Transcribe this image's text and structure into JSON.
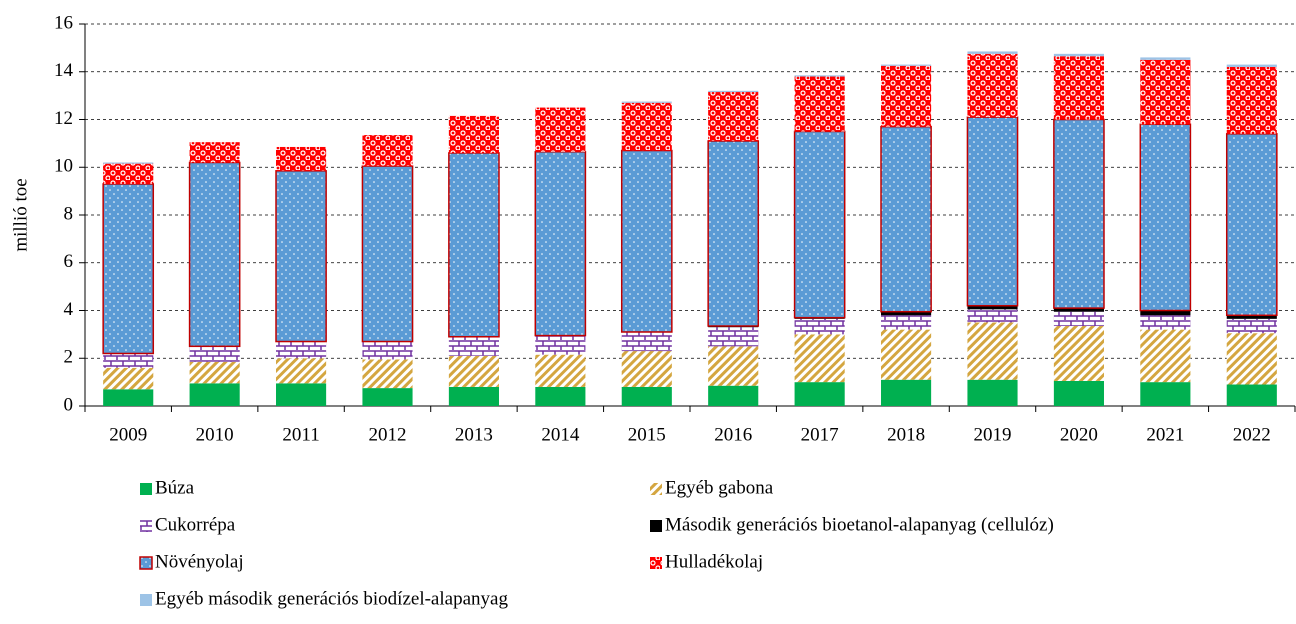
{
  "chart_data": {
    "type": "stacked_bar",
    "y_label": "millió toe",
    "categories": [
      "2009",
      "2010",
      "2011",
      "2012",
      "2013",
      "2014",
      "2015",
      "2016",
      "2017",
      "2018",
      "2019",
      "2020",
      "2021",
      "2022"
    ],
    "series": [
      {
        "name": "Búza",
        "color": "#00b050",
        "values": [
          0.7,
          0.95,
          0.95,
          0.75,
          0.8,
          0.8,
          0.8,
          0.85,
          1.0,
          1.1,
          1.1,
          1.05,
          1.0,
          0.9
        ]
      },
      {
        "name": "Egyéb gabona",
        "color": "#d4a640",
        "values": [
          0.9,
          0.9,
          1.05,
          1.2,
          1.3,
          1.35,
          1.5,
          1.65,
          2.0,
          2.1,
          2.4,
          2.3,
          2.2,
          2.15
        ]
      },
      {
        "name": "Cukorrépa",
        "color": "#7030a0",
        "values": [
          0.6,
          0.65,
          0.7,
          0.75,
          0.8,
          0.8,
          0.8,
          0.8,
          0.65,
          0.6,
          0.55,
          0.6,
          0.6,
          0.6
        ]
      },
      {
        "name": "Második generációs bioetanol-alapanyag (cellulóz)",
        "color": "#000000",
        "values": [
          0,
          0,
          0,
          0,
          0,
          0,
          0,
          0.05,
          0.05,
          0.15,
          0.15,
          0.15,
          0.2,
          0.15
        ]
      },
      {
        "name": "Növényolaj",
        "color": "#5b9bd5",
        "values": [
          7.1,
          7.7,
          7.15,
          7.35,
          7.7,
          7.7,
          7.6,
          7.75,
          7.8,
          7.75,
          7.9,
          7.9,
          7.8,
          7.6
        ]
      },
      {
        "name": "Hulladékolaj",
        "color": "#ff0000",
        "values": [
          0.85,
          0.85,
          1.0,
          1.3,
          1.55,
          1.85,
          2.0,
          2.05,
          2.3,
          2.55,
          2.65,
          2.65,
          2.7,
          2.8
        ]
      },
      {
        "name": "Egyéb második generációs biodízel-alapanyag",
        "color": "#9dc3e6",
        "values": [
          0.05,
          0,
          0,
          0,
          0,
          0,
          0.05,
          0.05,
          0.05,
          0.05,
          0.1,
          0.1,
          0.1,
          0.1
        ]
      }
    ],
    "ylim": [
      0,
      16
    ],
    "yticks": [
      0,
      2,
      4,
      6,
      8,
      10,
      12,
      14,
      16
    ],
    "grid": true
  }
}
